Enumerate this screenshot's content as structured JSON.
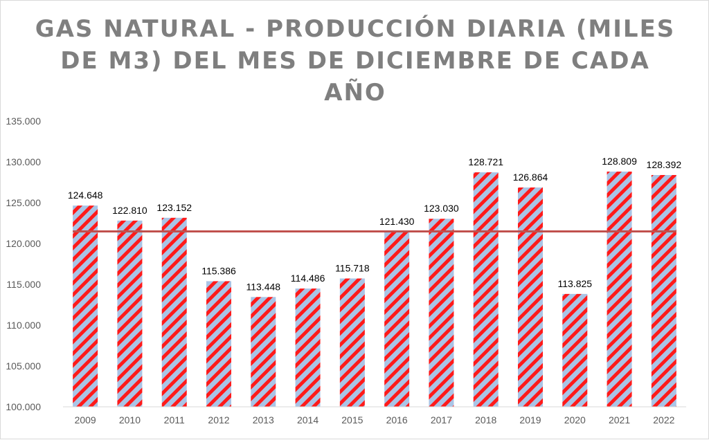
{
  "chart_data": {
    "type": "bar",
    "title_lines": [
      "GAS NATURAL - PRODUCCIÓN DIARIA (MILES",
      "DE M3) DEL MES DE DICIEMBRE DE CADA",
      "AÑO"
    ],
    "categories": [
      "2009",
      "2010",
      "2011",
      "2012",
      "2013",
      "2014",
      "2015",
      "2016",
      "2017",
      "2018",
      "2019",
      "2020",
      "2021",
      "2022"
    ],
    "values": [
      124648,
      122810,
      123152,
      115386,
      113448,
      114486,
      115718,
      121430,
      123030,
      128721,
      126864,
      113825,
      128809,
      128392
    ],
    "labels": [
      "124.648",
      "122.810",
      "123.152",
      "115.386",
      "113.448",
      "114.486",
      "115.718",
      "121.430",
      "123.030",
      "128.721",
      "126.864",
      "113.825",
      "128.809",
      "128.392"
    ],
    "average_line": 121480,
    "ylim": [
      100000,
      135000
    ],
    "yticks": [
      100000,
      105000,
      110000,
      115000,
      120000,
      125000,
      130000,
      135000
    ],
    "ytick_labels": [
      "100.000",
      "105.000",
      "110.000",
      "115.000",
      "120.000",
      "125.000",
      "130.000",
      "135.000"
    ],
    "grid": false,
    "colors": {
      "bar_fill": "#a9c4e6",
      "bar_stripe": "#ff1a1a",
      "average": "#c0504d",
      "text": "#595959"
    }
  }
}
